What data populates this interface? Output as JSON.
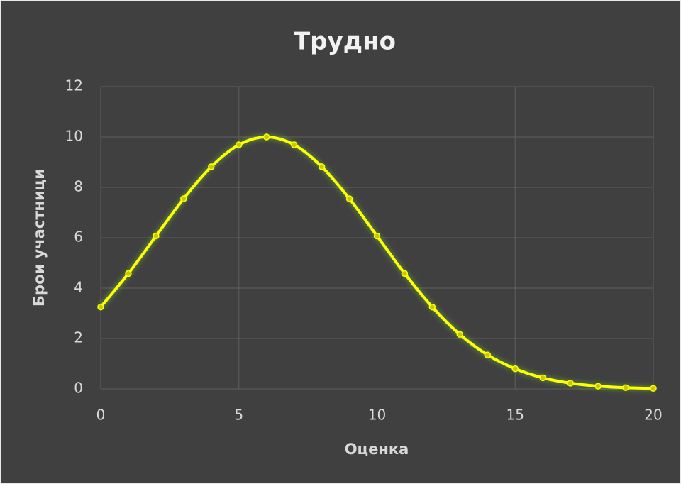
{
  "chart_data": {
    "type": "line",
    "title": "Трудно",
    "x_label": "Оценка",
    "y_label": "Брои участници",
    "x": [
      0,
      1,
      2,
      3,
      4,
      5,
      6,
      7,
      8,
      9,
      10,
      11,
      12,
      13,
      14,
      15,
      16,
      17,
      18,
      19,
      20
    ],
    "series": [
      {
        "name": "Трудно",
        "color": "#ffff00",
        "values": [
          3.25,
          4.58,
          6.07,
          7.55,
          8.82,
          9.69,
          10,
          9.69,
          8.82,
          7.55,
          6.07,
          4.58,
          3.25,
          2.16,
          1.35,
          0.8,
          0.44,
          0.23,
          0.11,
          0.05,
          0.02
        ]
      }
    ],
    "xlim": [
      0,
      20
    ],
    "xticks": [
      0,
      5,
      10,
      15,
      20
    ],
    "ylim": [
      0,
      12
    ],
    "yticks": [
      0,
      2,
      4,
      6,
      8,
      10,
      12
    ],
    "grid": true,
    "smooth": true
  }
}
